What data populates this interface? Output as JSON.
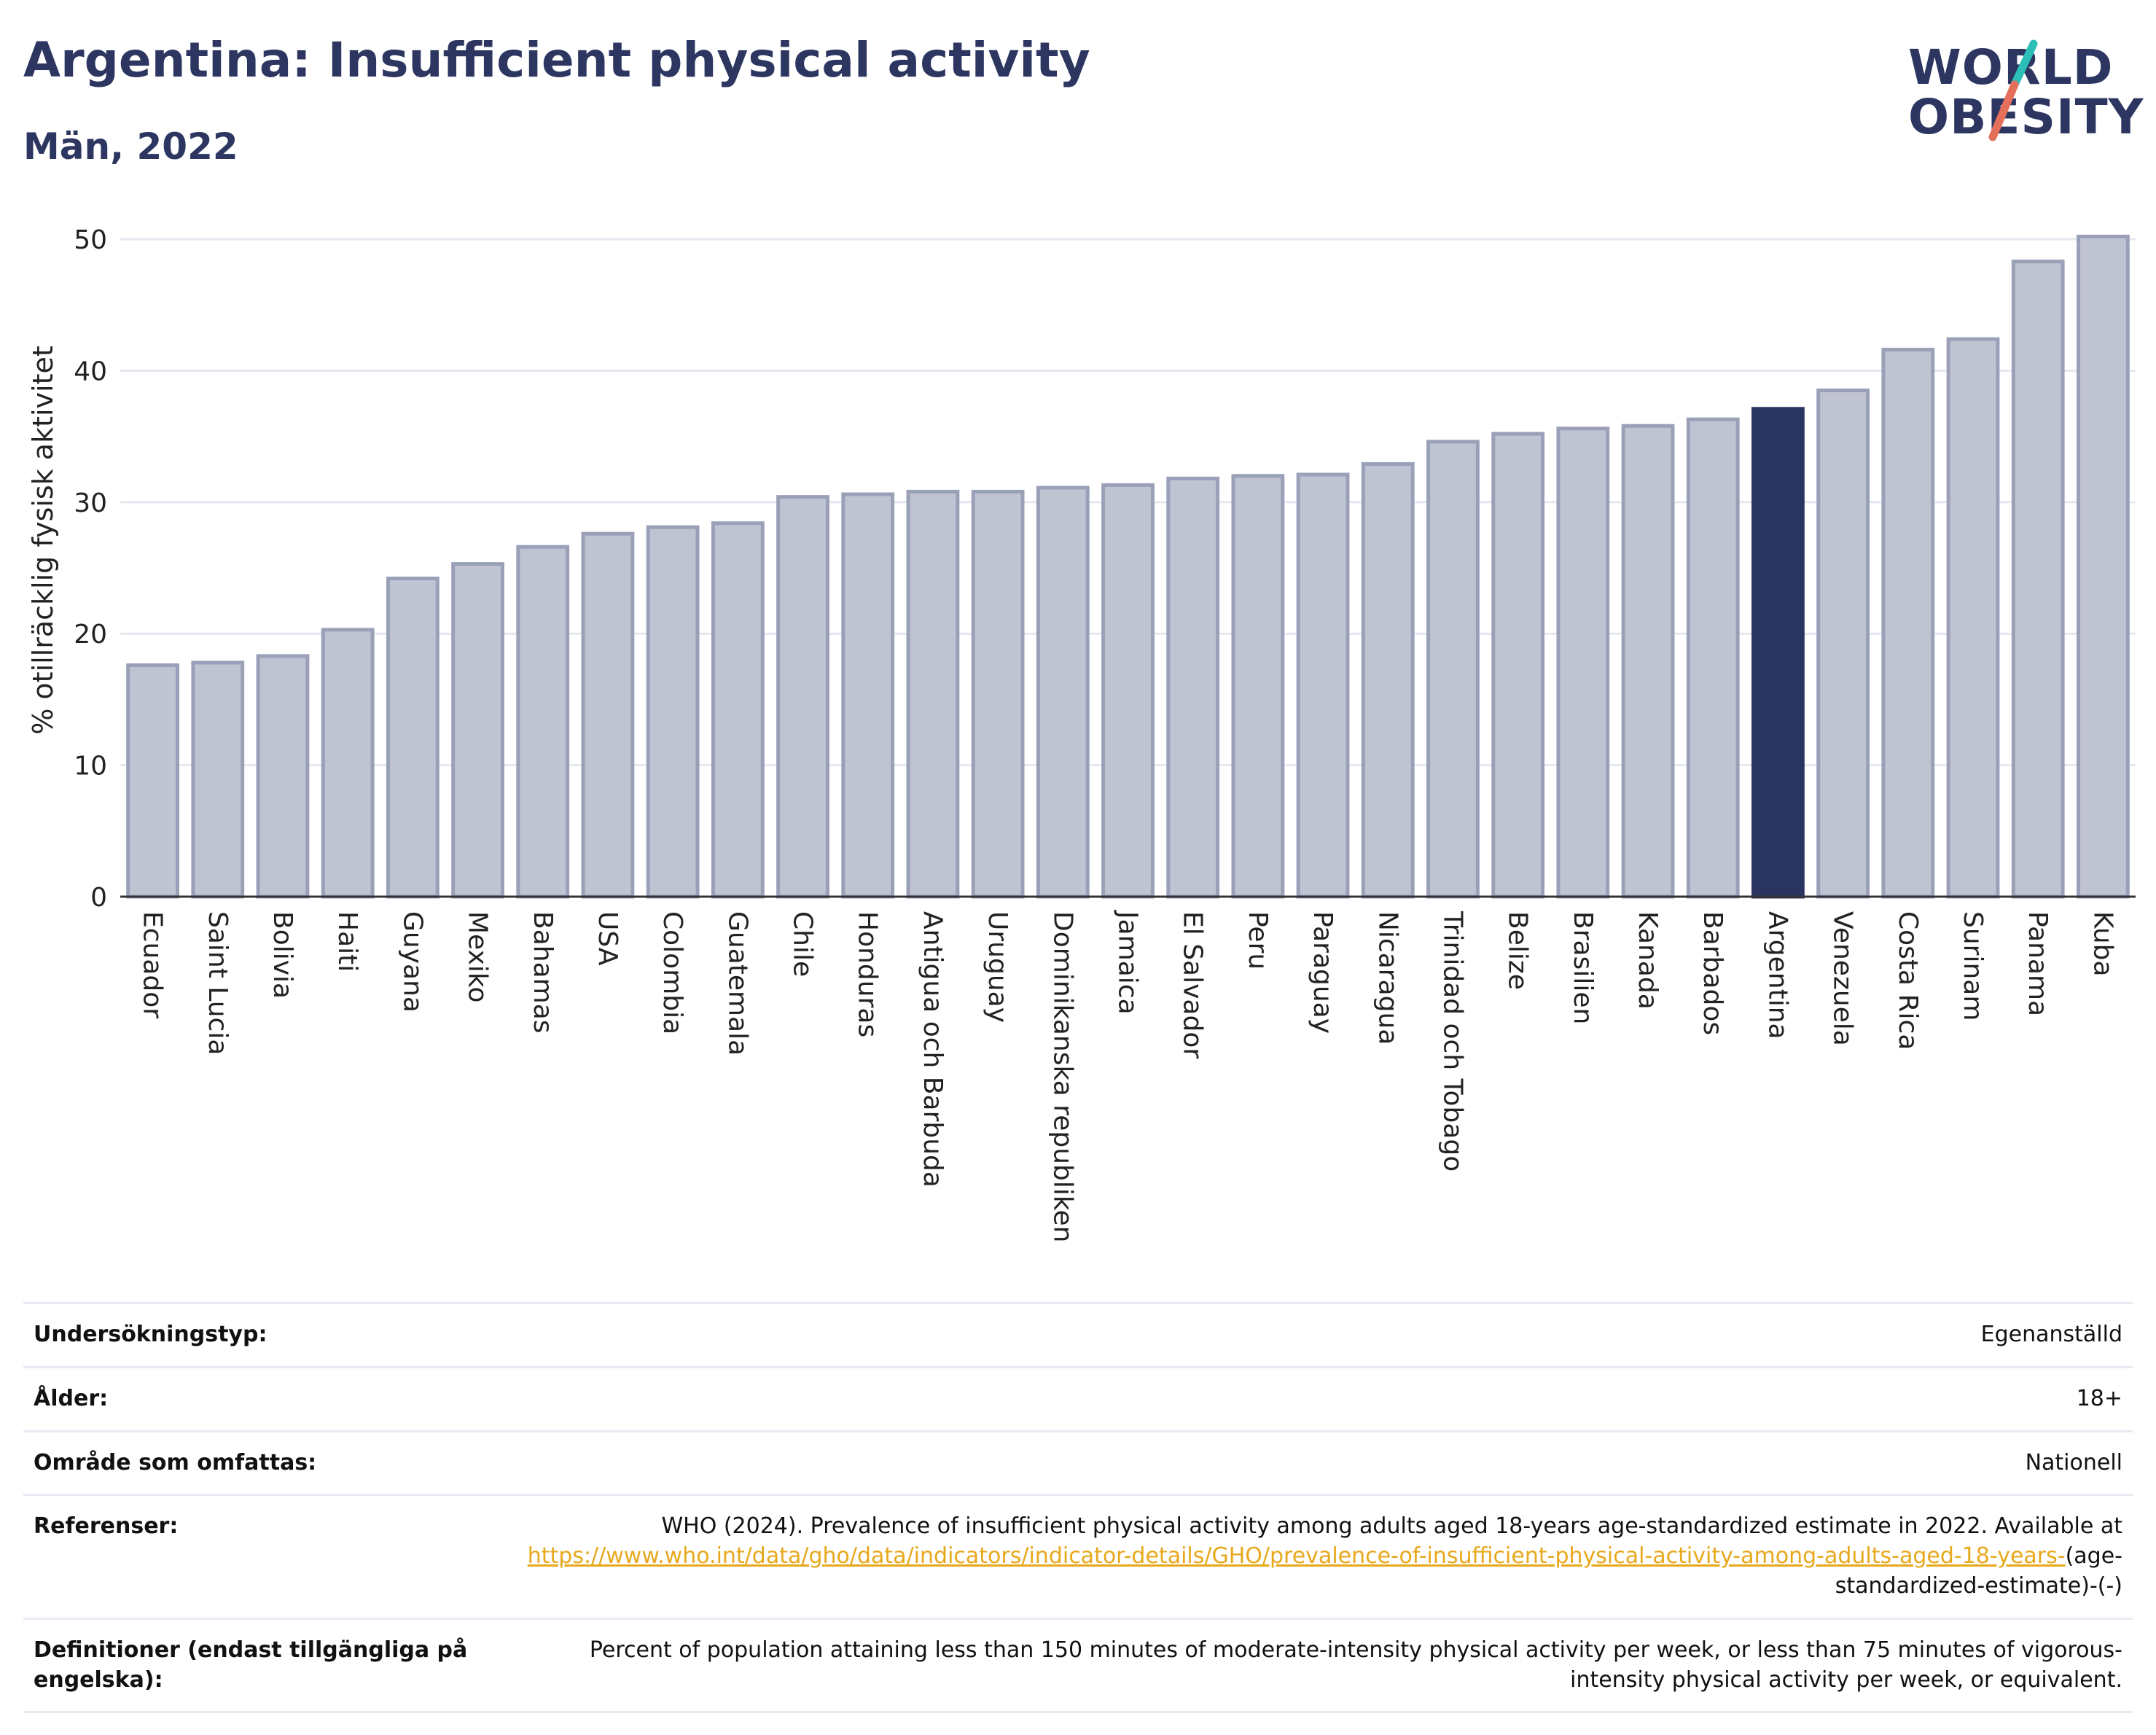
{
  "header": {
    "title": "Argentina: Insufficient physical activity",
    "subtitle": "Män, 2022"
  },
  "logo": {
    "line1": "WORLD",
    "line2": "OBESITY",
    "slash_colors": [
      "#2bbfb8",
      "#e4705c"
    ]
  },
  "colors": {
    "bar": "#c0c3d1",
    "bar_border": "#9aa0b8",
    "highlight": "#2a3460",
    "grid": "#e6e8ef",
    "axis": "#333333"
  },
  "chart_data": {
    "type": "bar",
    "title": "Argentina: Insufficient physical activity",
    "subtitle": "Män, 2022",
    "xlabel": "",
    "ylabel": "% otillräcklig fysisk aktivitet",
    "ylim": [
      0,
      52
    ],
    "yticks": [
      0,
      10,
      20,
      30,
      40,
      50
    ],
    "grid": true,
    "highlight": "Argentina",
    "categories": [
      "Ecuador",
      "Saint Lucia",
      "Bolivia",
      "Haiti",
      "Guyana",
      "Mexiko",
      "Bahamas",
      "USA",
      "Colombia",
      "Guatemala",
      "Chile",
      "Honduras",
      "Antigua och Barbuda",
      "Uruguay",
      "Dominikanska republiken",
      "Jamaica",
      "El Salvador",
      "Peru",
      "Paraguay",
      "Nicaragua",
      "Trinidad och Tobago",
      "Belize",
      "Brasilien",
      "Kanada",
      "Barbados",
      "Argentina",
      "Venezuela",
      "Costa Rica",
      "Surinam",
      "Panama",
      "Kuba"
    ],
    "values": [
      17.6,
      17.8,
      18.3,
      20.3,
      24.2,
      25.3,
      26.6,
      27.6,
      28.1,
      28.4,
      30.4,
      30.6,
      30.8,
      30.8,
      31.1,
      31.3,
      31.8,
      32.0,
      32.1,
      32.9,
      34.6,
      35.2,
      35.6,
      35.8,
      36.3,
      37.1,
      38.5,
      41.6,
      42.4,
      48.3,
      50.2
    ]
  },
  "info": {
    "rows": [
      {
        "label": "Undersökningstyp:",
        "value": "Egenanställd"
      },
      {
        "label": "Ålder:",
        "value": "18+"
      },
      {
        "label": "Område som omfattas:",
        "value": "Nationell"
      }
    ],
    "references": {
      "label": "Referenser:",
      "text": "WHO (2024). Prevalence of insufficient physical activity among adults aged 18-years age-standardized estimate in 2022. Available at",
      "link": "https://www.who.int/data/gho/data/indicators/indicator-details/GHO/prevalence-of-insufficient-physical-activity-among-adults-aged-18-years-",
      "suffix": "(age-standardized-estimate)-(-)"
    },
    "definitions": {
      "label": "Definitioner (endast tillgängliga på engelska):",
      "value": "Percent of population attaining less than 150 minutes of moderate-intensity physical activity per week, or less than 75 minutes of vigorous-intensity physical activity per week, or equivalent."
    }
  }
}
